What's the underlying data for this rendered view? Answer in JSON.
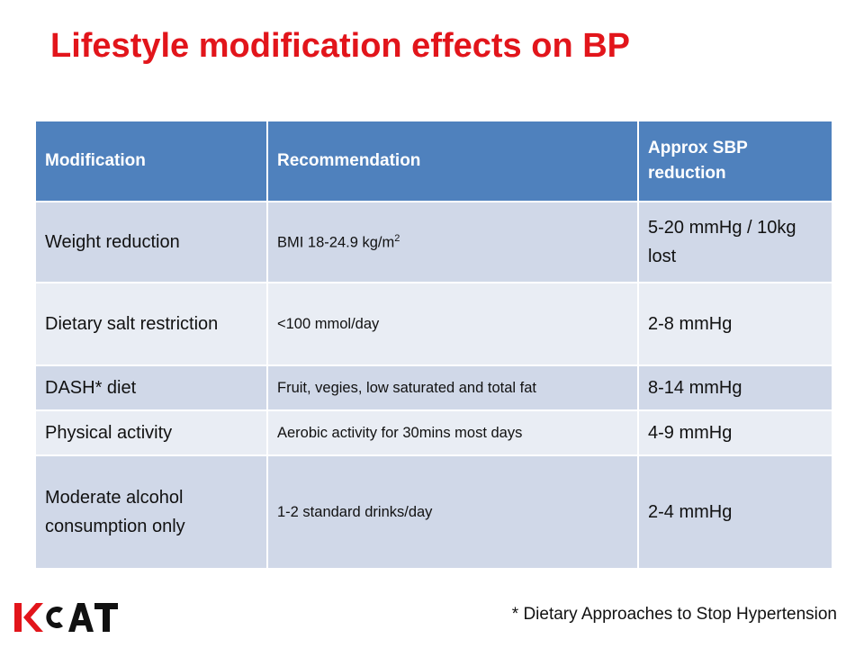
{
  "title": "Lifestyle modification effects on BP",
  "table": {
    "headers": [
      "Modification",
      "Recommendation",
      "Approx SBP reduction"
    ],
    "rows": [
      {
        "modification": "Weight reduction",
        "recommendation": "BMI 18-24.9 kg/m",
        "recommendation_sup": "2",
        "reduction": "5-20 mmHg / 10kg lost"
      },
      {
        "modification": "Dietary salt restriction",
        "recommendation": "<100 mmol/day",
        "reduction": "2-8 mmHg"
      },
      {
        "modification": "DASH* diet",
        "recommendation": "Fruit, vegies, low saturated and total fat",
        "reduction": "8-14 mmHg"
      },
      {
        "modification": "Physical activity",
        "recommendation": "Aerobic activity for 30mins most days",
        "reduction": "4-9 mmHg"
      },
      {
        "modification": "Moderate alcohol consumption only",
        "recommendation": "1-2 standard drinks/day",
        "reduction": "2-4 mmHg"
      }
    ]
  },
  "footnote": "* Dietary Approaches to Stop Hypertension",
  "logo": {
    "text": "KCAT",
    "icon": "kcat-logo",
    "colors": {
      "red": "#e2151b",
      "black": "#111111"
    }
  },
  "colors": {
    "title": "#e2151b",
    "header_bg": "#4f81bd",
    "row_odd": "#d0d8e8",
    "row_even": "#e9edf4"
  }
}
